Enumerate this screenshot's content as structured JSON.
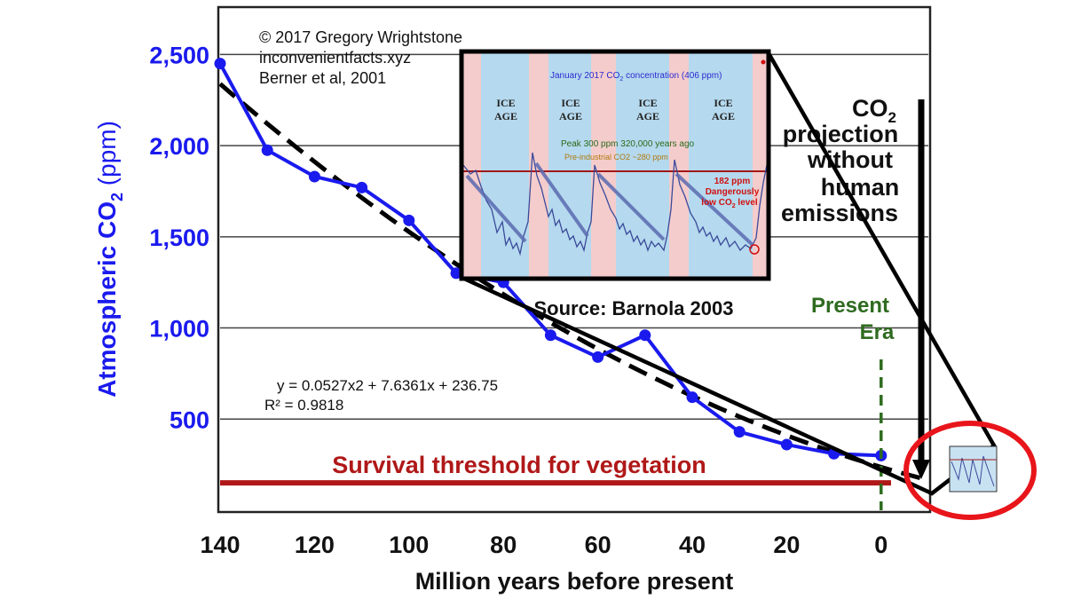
{
  "credits": [
    "© 2017 Gregory Wrightstone",
    "inconvenientfacts.xyz",
    "Berner et al, 2001"
  ],
  "chart_data": {
    "type": "line",
    "xlabel": "Million years before present",
    "ylabel": "Atmospheric CO",
    "ylabel_sub": "2",
    "ylabel_unit": " (ppm)",
    "xlim": [
      140,
      -10
    ],
    "ylim": [
      0,
      2750
    ],
    "x_ticks": [
      140,
      120,
      100,
      80,
      60,
      40,
      20,
      0
    ],
    "y_ticks": [
      500,
      1000,
      1500,
      2000,
      2500
    ],
    "y_tick_labels": [
      "500",
      "1,000",
      "1,500",
      "2,000",
      "2,500"
    ],
    "grid": "horizontal",
    "series": [
      {
        "color": "#1a1aee",
        "x": [
          140,
          130,
          120,
          110,
          100,
          90,
          80,
          70,
          60,
          50,
          40,
          30,
          20,
          10,
          0
        ],
        "y": [
          2450,
          1975,
          1830,
          1770,
          1590,
          1300,
          1250,
          960,
          840,
          960,
          620,
          430,
          360,
          310,
          300
        ]
      }
    ],
    "trend": {
      "equation": "y = 0.0527x2 + 7.6361x + 236.75",
      "r2": "R² = 0.9818",
      "color": "#000000",
      "coefficients": [
        0.0527,
        7.6361,
        236.75
      ]
    },
    "threshold": {
      "value": 150,
      "label": "Survival threshold for vegetation",
      "color": "#b01818"
    },
    "present": {
      "x": 0,
      "label_line1": "Present",
      "label_line2": "Era",
      "color": "#2e6b1f"
    },
    "projection": {
      "line1": "CO",
      "line1_sub": "2",
      "line2": "projection",
      "line3": "without",
      "line4": "human",
      "line5": "emissions"
    },
    "inset_source": "Source: Barnola 2003",
    "inset": {
      "top_note": "January 2017 CO",
      "top_note_sub": "2",
      "top_note_tail": " concentration (406 ppm)",
      "ice_age_line1": "ICE",
      "ice_age_line2": "AGE",
      "peak_note": "Peak 300 ppm 320,000 years ago",
      "preindustrial_note": "Pre-industrial CO2 ~280 ppm",
      "low_note_line1": "182 ppm",
      "low_note_line2": "Dangerously",
      "low_note_line3": "low CO",
      "low_note_sub": "2",
      "low_note_tail": " level"
    },
    "colors": {
      "accent_red": "#e8151b",
      "inset_blue": "#b5d9ee",
      "inset_pink": "#f4cccc",
      "series_blue": "#1a1aee"
    }
  }
}
